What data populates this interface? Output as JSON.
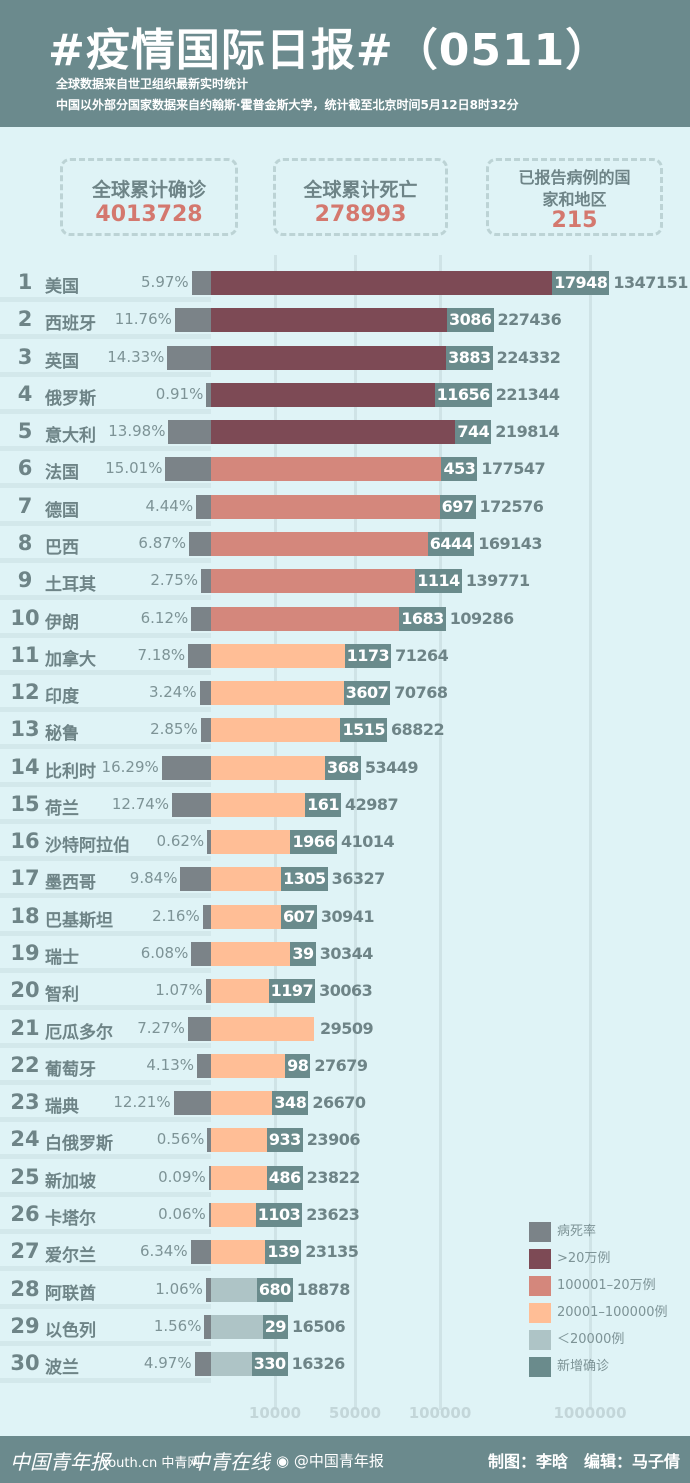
{
  "header": {
    "title": "#疫情国际日报#（0511）",
    "subtitle1": "全球数据来自世卫组织最新实时统计",
    "subtitle2": "中国以外部分国家数据来自约翰斯·霍普金斯大学，统计截至北京时间5月12日8时32分"
  },
  "summary": [
    {
      "label": "全球累计确诊",
      "value": "4013728"
    },
    {
      "label": "全球累计死亡",
      "value": "278993"
    },
    {
      "label": "已报告病例的国家和地区",
      "value": "215"
    }
  ],
  "colors": {
    "death_rate": "#7b8388",
    "over_200k": "#7d4a55",
    "100k_200k": "#d4877c",
    "20k_100k": "#ffbe96",
    "under_20k": "#aec4c6",
    "new_cases": "#6a8b8c"
  },
  "chart_data": {
    "type": "bar",
    "orientation": "horizontal",
    "x_scale": "log",
    "x_ticks": [
      "10000",
      "50000",
      "100000",
      "1000000"
    ],
    "legend": [
      {
        "label": "病死率",
        "color": "#7b8388"
      },
      {
        "label": ">20万例",
        "color": "#7d4a55"
      },
      {
        "label": "100001–20万例",
        "color": "#d4877c"
      },
      {
        "label": "20001–100000例",
        "color": "#ffbe96"
      },
      {
        "label": "＜20000例",
        "color": "#aec4c6"
      },
      {
        "label": "新增确诊",
        "color": "#6a8b8c"
      }
    ],
    "legend_position": "bottom-right",
    "rows": [
      {
        "rank": "1",
        "country": "美国",
        "death_rate": "5.97%",
        "new": "17948",
        "cases": "1347151"
      },
      {
        "rank": "2",
        "country": "西班牙",
        "death_rate": "11.76%",
        "new": "3086",
        "cases": "227436"
      },
      {
        "rank": "3",
        "country": "英国",
        "death_rate": "14.33%",
        "new": "3883",
        "cases": "224332"
      },
      {
        "rank": "4",
        "country": "俄罗斯",
        "death_rate": "0.91%",
        "new": "11656",
        "cases": "221344"
      },
      {
        "rank": "5",
        "country": "意大利",
        "death_rate": "13.98%",
        "new": "744",
        "cases": "219814"
      },
      {
        "rank": "6",
        "country": "法国",
        "death_rate": "15.01%",
        "new": "453",
        "cases": "177547"
      },
      {
        "rank": "7",
        "country": "德国",
        "death_rate": "4.44%",
        "new": "697",
        "cases": "172576"
      },
      {
        "rank": "8",
        "country": "巴西",
        "death_rate": "6.87%",
        "new": "6444",
        "cases": "169143"
      },
      {
        "rank": "9",
        "country": "土耳其",
        "death_rate": "2.75%",
        "new": "1114",
        "cases": "139771"
      },
      {
        "rank": "10",
        "country": "伊朗",
        "death_rate": "6.12%",
        "new": "1683",
        "cases": "109286"
      },
      {
        "rank": "11",
        "country": "加拿大",
        "death_rate": "7.18%",
        "new": "1173",
        "cases": "71264"
      },
      {
        "rank": "12",
        "country": "印度",
        "death_rate": "3.24%",
        "new": "3607",
        "cases": "70768"
      },
      {
        "rank": "13",
        "country": "秘鲁",
        "death_rate": "2.85%",
        "new": "1515",
        "cases": "68822"
      },
      {
        "rank": "14",
        "country": "比利时",
        "death_rate": "16.29%",
        "new": "368",
        "cases": "53449"
      },
      {
        "rank": "15",
        "country": "荷兰",
        "death_rate": "12.74%",
        "new": "161",
        "cases": "42987"
      },
      {
        "rank": "16",
        "country": "沙特阿拉伯",
        "death_rate": "0.62%",
        "new": "1966",
        "cases": "41014"
      },
      {
        "rank": "17",
        "country": "墨西哥",
        "death_rate": "9.84%",
        "new": "1305",
        "cases": "36327"
      },
      {
        "rank": "18",
        "country": "巴基斯坦",
        "death_rate": "2.16%",
        "new": "607",
        "cases": "30941"
      },
      {
        "rank": "19",
        "country": "瑞士",
        "death_rate": "6.08%",
        "new": "39",
        "cases": "30344"
      },
      {
        "rank": "20",
        "country": "智利",
        "death_rate": "1.07%",
        "new": "1197",
        "cases": "30063"
      },
      {
        "rank": "21",
        "country": "厄瓜多尔",
        "death_rate": "7.27%",
        "new": "",
        "cases": "29509"
      },
      {
        "rank": "22",
        "country": "葡萄牙",
        "death_rate": "4.13%",
        "new": "98",
        "cases": "27679"
      },
      {
        "rank": "23",
        "country": "瑞典",
        "death_rate": "12.21%",
        "new": "348",
        "cases": "26670"
      },
      {
        "rank": "24",
        "country": "白俄罗斯",
        "death_rate": "0.56%",
        "new": "933",
        "cases": "23906"
      },
      {
        "rank": "25",
        "country": "新加坡",
        "death_rate": "0.09%",
        "new": "486",
        "cases": "23822"
      },
      {
        "rank": "26",
        "country": "卡塔尔",
        "death_rate": "0.06%",
        "new": "1103",
        "cases": "23623"
      },
      {
        "rank": "27",
        "country": "爱尔兰",
        "death_rate": "6.34%",
        "new": "139",
        "cases": "23135"
      },
      {
        "rank": "28",
        "country": "阿联酋",
        "death_rate": "1.06%",
        "new": "680",
        "cases": "18878"
      },
      {
        "rank": "29",
        "country": "以色列",
        "death_rate": "1.56%",
        "new": "29",
        "cases": "16506"
      },
      {
        "rank": "30",
        "country": "波兰",
        "death_rate": "4.97%",
        "new": "330",
        "cases": "16326"
      }
    ]
  },
  "footer": {
    "logos": [
      "中国青年报",
      "Youth.cn 中青网",
      "中青在线"
    ],
    "weibo": "@中国青年报",
    "credit": "制图：李晗　编辑：马子倩"
  }
}
